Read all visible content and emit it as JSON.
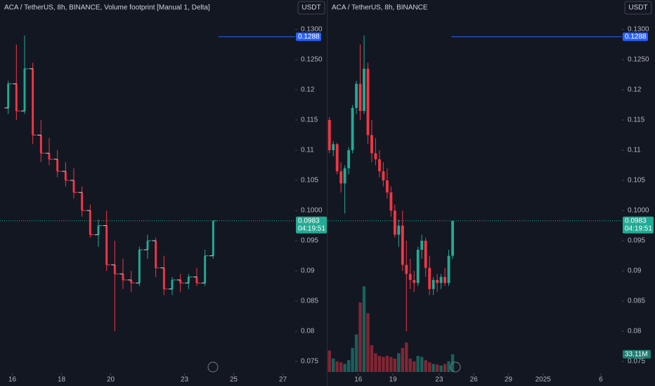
{
  "chart_data": [
    {
      "type": "candlestick",
      "title": "ACA / TetherUS, 8h, BINANCE, Volume footprint [Manual 1, Delta]",
      "currency": "USDT",
      "up_color": "#22ab94",
      "down_color": "#f23645",
      "open": [
        0.117,
        0.121,
        0.1165,
        0.1235,
        0.1125,
        0.1095,
        0.1085,
        0.1065,
        0.105,
        0.103,
        0.1,
        0.096,
        0.0975,
        0.091,
        0.0895,
        0.0885,
        0.088,
        0.0935,
        0.095,
        0.0905,
        0.087,
        0.0885,
        0.088,
        0.089,
        0.088,
        0.0925
      ],
      "high": [
        0.1215,
        0.1275,
        0.129,
        0.1245,
        0.115,
        0.112,
        0.11,
        0.108,
        0.107,
        0.104,
        0.101,
        0.0985,
        0.1,
        0.095,
        0.092,
        0.09,
        0.094,
        0.096,
        0.0955,
        0.0925,
        0.089,
        0.0895,
        0.0895,
        0.0905,
        0.0935,
        0.0983
      ],
      "low": [
        0.116,
        0.115,
        0.116,
        0.111,
        0.108,
        0.1075,
        0.1055,
        0.104,
        0.102,
        0.099,
        0.0955,
        0.094,
        0.09,
        0.08,
        0.087,
        0.0865,
        0.0875,
        0.092,
        0.089,
        0.086,
        0.086,
        0.0865,
        0.087,
        0.0875,
        0.0875,
        0.092
      ],
      "close": [
        0.121,
        0.1165,
        0.1235,
        0.1125,
        0.1095,
        0.1085,
        0.1065,
        0.105,
        0.103,
        0.1,
        0.096,
        0.0975,
        0.091,
        0.0895,
        0.0885,
        0.088,
        0.0935,
        0.095,
        0.0905,
        0.087,
        0.0885,
        0.088,
        0.089,
        0.088,
        0.0925,
        0.0983
      ],
      "xlim": [
        -1,
        35
      ],
      "xticks": [
        {
          "value": 0.5,
          "label": "16"
        },
        {
          "value": 6.5,
          "label": "18"
        },
        {
          "value": 12.5,
          "label": "20"
        },
        {
          "value": 21.5,
          "label": "23"
        },
        {
          "value": 27.5,
          "label": "25"
        },
        {
          "value": 33.5,
          "label": "27"
        }
      ],
      "ylim": [
        0.075,
        0.13
      ],
      "yticks": [
        {
          "value": 0.13,
          "label": "0.1300"
        },
        {
          "value": 0.125,
          "label": "0.1250"
        },
        0.12,
        0.115,
        0.11,
        0.105,
        {
          "value": 0.1,
          "label": "0.1000"
        },
        0.095,
        0.09,
        0.085,
        0.08,
        0.075
      ],
      "price_line": 0.1288,
      "last_price": 0.0983,
      "countdown": "04:19:51"
    },
    {
      "type": "candlestick",
      "title": "ACA / TetherUS, 8h, BINANCE",
      "currency": "USDT",
      "up_color": "#22ab94",
      "down_color": "#f23645",
      "open": [
        0.115,
        0.11,
        0.111,
        0.1065,
        0.1045,
        0.107,
        0.11,
        0.117,
        0.121,
        0.1165,
        0.1235,
        0.1125,
        0.1095,
        0.1085,
        0.1065,
        0.105,
        0.103,
        0.1,
        0.096,
        0.0975,
        0.091,
        0.0895,
        0.0885,
        0.088,
        0.0935,
        0.095,
        0.0905,
        0.087,
        0.0885,
        0.088,
        0.089,
        0.088,
        0.0925
      ],
      "high": [
        0.1155,
        0.1115,
        0.1112,
        0.108,
        0.1075,
        0.1105,
        0.1175,
        0.1215,
        0.1275,
        0.129,
        0.1245,
        0.115,
        0.112,
        0.11,
        0.108,
        0.107,
        0.104,
        0.101,
        0.0985,
        0.1,
        0.095,
        0.092,
        0.09,
        0.094,
        0.096,
        0.0955,
        0.0925,
        0.089,
        0.0895,
        0.0895,
        0.0905,
        0.0935,
        0.0983
      ],
      "low": [
        0.1095,
        0.109,
        0.106,
        0.103,
        0.0995,
        0.106,
        0.1095,
        0.116,
        0.115,
        0.116,
        0.111,
        0.108,
        0.1075,
        0.1055,
        0.104,
        0.102,
        0.099,
        0.0955,
        0.094,
        0.09,
        0.08,
        0.087,
        0.0865,
        0.0875,
        0.092,
        0.089,
        0.086,
        0.086,
        0.0865,
        0.087,
        0.0875,
        0.0875,
        0.092
      ],
      "close": [
        0.11,
        0.111,
        0.1065,
        0.1045,
        0.107,
        0.11,
        0.117,
        0.121,
        0.1165,
        0.1235,
        0.1125,
        0.1095,
        0.1085,
        0.1065,
        0.105,
        0.103,
        0.1,
        0.096,
        0.0975,
        0.091,
        0.0895,
        0.0885,
        0.088,
        0.0935,
        0.095,
        0.0905,
        0.087,
        0.0885,
        0.088,
        0.089,
        0.088,
        0.0925,
        0.0983
      ],
      "volume": [
        40,
        25,
        20,
        18,
        15,
        22,
        45,
        70,
        130,
        160,
        110,
        50,
        35,
        30,
        28,
        30,
        28,
        25,
        35,
        45,
        55,
        25,
        20,
        30,
        28,
        22,
        18,
        15,
        14,
        12,
        15,
        20,
        33.11
      ],
      "volume_label": "33.11M",
      "vlim": [
        0,
        640
      ],
      "xlim": [
        -0.5,
        76
      ],
      "xticks": [
        {
          "value": 7.5,
          "label": "16"
        },
        {
          "value": 16.5,
          "label": "19"
        },
        {
          "value": 28.5,
          "label": "23"
        },
        {
          "value": 37.5,
          "label": "26"
        },
        {
          "value": 46.5,
          "label": "29"
        },
        {
          "value": 55.5,
          "label": "2025"
        },
        {
          "value": 70.5,
          "label": "6"
        }
      ],
      "ylim": [
        0.075,
        0.13
      ],
      "yticks": [
        {
          "value": 0.13,
          "label": "0.1300"
        },
        {
          "value": 0.125,
          "label": "0.1250"
        },
        0.12,
        0.115,
        0.11,
        0.105,
        {
          "value": 0.1,
          "label": "0.1000"
        },
        0.095,
        0.09,
        0.085,
        0.08,
        0.075
      ],
      "price_line": 0.1288,
      "last_price": 0.0983,
      "countdown": "04:19:51"
    }
  ]
}
